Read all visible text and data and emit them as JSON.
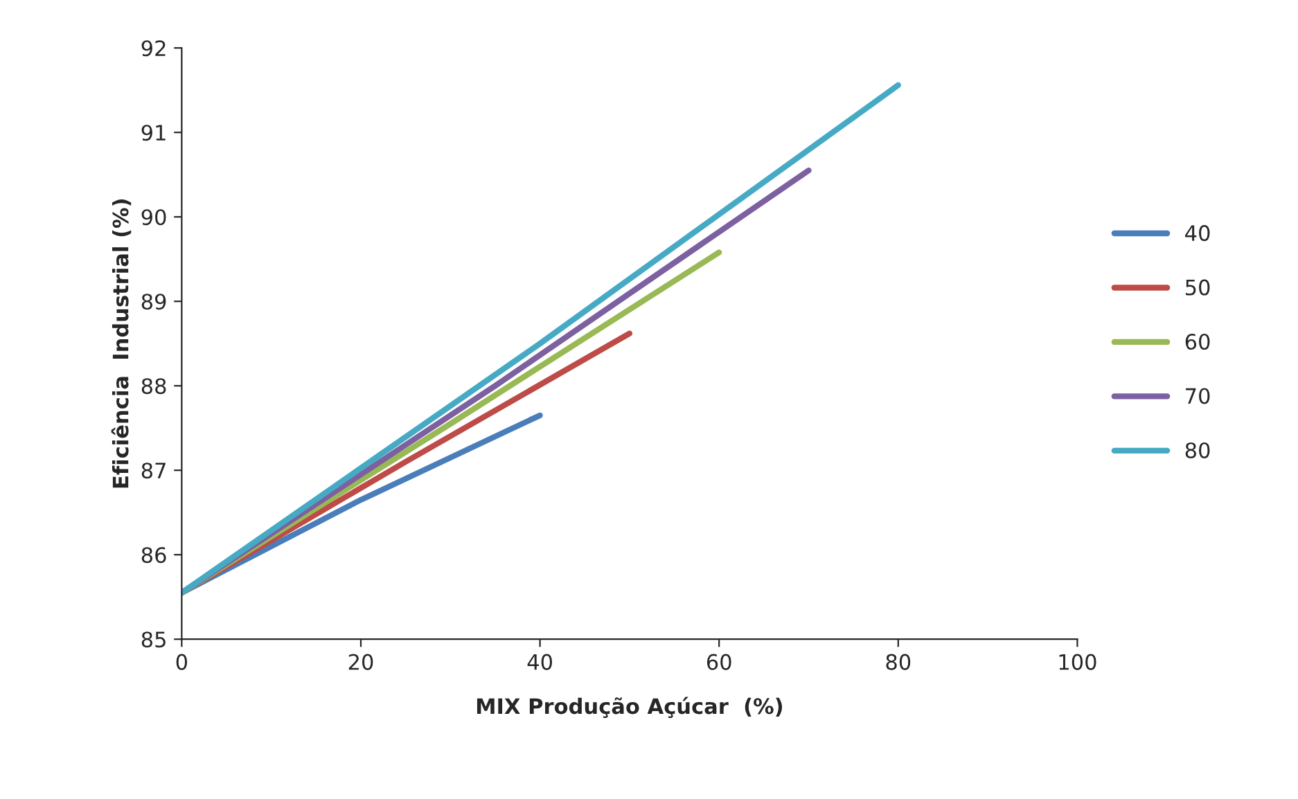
{
  "chart_data": {
    "type": "line",
    "xlabel": "MIX Produção Açúcar  (%)",
    "ylabel": "Eficiência  Industrial (%)",
    "xlim": [
      0,
      100
    ],
    "xticks": [
      0,
      20,
      40,
      60,
      80,
      100
    ],
    "ylim": [
      85,
      92
    ],
    "yticks": [
      85,
      86,
      87,
      88,
      89,
      90,
      91,
      92
    ],
    "grid": false,
    "legend": "right",
    "marker": "none",
    "line_style": "solid",
    "series": [
      {
        "name": "40",
        "color": "#4a7ebb",
        "x": [
          0,
          20,
          40
        ],
        "values": [
          85.55,
          86.65,
          87.65
        ]
      },
      {
        "name": "50",
        "color": "#be4b48",
        "x": [
          0,
          25,
          50
        ],
        "values": [
          85.55,
          87.1,
          88.62
        ]
      },
      {
        "name": "60",
        "color": "#98b954",
        "x": [
          0,
          30,
          60
        ],
        "values": [
          85.55,
          87.55,
          89.58
        ]
      },
      {
        "name": "70",
        "color": "#7d60a0",
        "x": [
          0,
          35,
          70
        ],
        "values": [
          85.55,
          88.0,
          90.55
        ]
      },
      {
        "name": "80",
        "color": "#46aac5",
        "x": [
          0,
          40,
          80
        ],
        "values": [
          85.55,
          88.5,
          91.56
        ]
      }
    ]
  }
}
